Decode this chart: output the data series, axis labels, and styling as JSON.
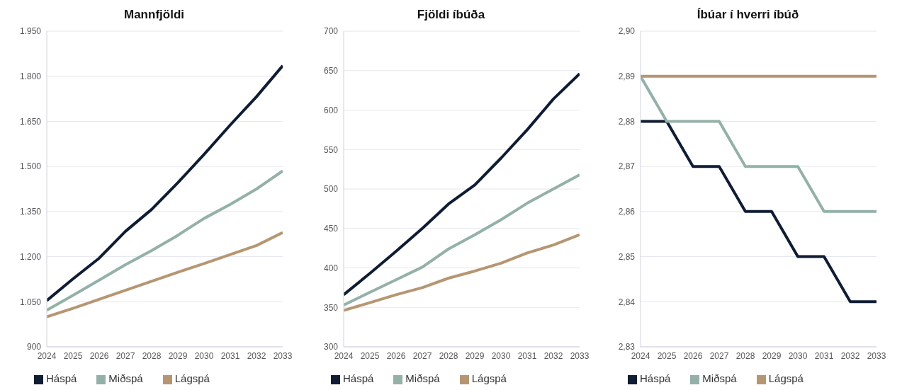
{
  "chart_data": [
    {
      "type": "line",
      "title": "Mannfjöldi",
      "x": [
        2024,
        2025,
        2026,
        2027,
        2028,
        2029,
        2030,
        2031,
        2032,
        2033
      ],
      "xlim": [
        2024,
        2033
      ],
      "xticks": [
        2024,
        2025,
        2026,
        2027,
        2028,
        2029,
        2030,
        2031,
        2032,
        2033
      ],
      "ylim": [
        900,
        1950
      ],
      "yticks": [
        900,
        {
          "value": 1050,
          "label": "1.050"
        },
        {
          "value": 1200,
          "label": "1.200"
        },
        {
          "value": 1350,
          "label": "1.350"
        },
        {
          "value": 1500,
          "label": "1.500"
        },
        {
          "value": 1650,
          "label": "1.650"
        },
        {
          "value": 1800,
          "label": "1.800"
        },
        {
          "value": 1950,
          "label": "1.950"
        }
      ],
      "grid": "y",
      "legend": "bottom",
      "marker": "none",
      "line_style": "solid",
      "series": [
        {
          "name": "Háspá",
          "color": "#0f1c33",
          "values": [
            1054,
            1126,
            1195,
            1284,
            1357,
            1446,
            1540,
            1638,
            1732,
            1835
          ]
        },
        {
          "name": "Miðspá",
          "color": "#93b1a8",
          "values": [
            1022,
            1071,
            1122,
            1173,
            1220,
            1271,
            1327,
            1374,
            1425,
            1485
          ]
        },
        {
          "name": "Lágspá",
          "color": "#b69672",
          "values": [
            1000,
            1028,
            1058,
            1088,
            1118,
            1148,
            1177,
            1207,
            1237,
            1280
          ]
        }
      ]
    },
    {
      "type": "line",
      "title": "Fjöldi íbúða",
      "x": [
        2024,
        2025,
        2026,
        2027,
        2028,
        2029,
        2030,
        2031,
        2032,
        2033
      ],
      "xlim": [
        2024,
        2033
      ],
      "xticks": [
        2024,
        2025,
        2026,
        2027,
        2028,
        2029,
        2030,
        2031,
        2032,
        2033
      ],
      "ylim": [
        300,
        700
      ],
      "yticks": [
        300,
        350,
        400,
        450,
        500,
        550,
        600,
        650,
        700
      ],
      "grid": "y",
      "legend": "bottom",
      "marker": "none",
      "line_style": "solid",
      "series": [
        {
          "name": "Háspá",
          "color": "#0f1c33",
          "values": [
            366,
            393,
            421,
            450,
            481,
            505,
            539,
            575,
            614,
            646
          ]
        },
        {
          "name": "Miðspá",
          "color": "#93b1a8",
          "values": [
            353,
            369,
            385,
            401,
            424,
            442,
            461,
            482,
            500,
            518
          ]
        },
        {
          "name": "Lágspá",
          "color": "#b69672",
          "values": [
            346,
            356,
            366,
            375,
            387,
            396,
            406,
            419,
            429,
            442
          ]
        }
      ]
    },
    {
      "type": "line",
      "title": "Íbúar í hverri íbúð",
      "x": [
        2024,
        2025,
        2026,
        2027,
        2028,
        2029,
        2030,
        2031,
        2032,
        2033
      ],
      "xlim": [
        2024,
        2033
      ],
      "xticks": [
        2024,
        2025,
        2026,
        2027,
        2028,
        2029,
        2030,
        2031,
        2032,
        2033
      ],
      "ylim": [
        2.83,
        2.9
      ],
      "yticks": [
        {
          "value": 2.83,
          "label": "2,83"
        },
        {
          "value": 2.84,
          "label": "2,84"
        },
        {
          "value": 2.85,
          "label": "2,85"
        },
        {
          "value": 2.86,
          "label": "2,86"
        },
        {
          "value": 2.87,
          "label": "2,87"
        },
        {
          "value": 2.88,
          "label": "2,88"
        },
        {
          "value": 2.89,
          "label": "2,89"
        },
        {
          "value": 2.9,
          "label": "2,90"
        }
      ],
      "grid": "y",
      "legend": "bottom",
      "marker": "none",
      "line_style": "solid",
      "series": [
        {
          "name": "Háspá",
          "color": "#0f1c33",
          "values": [
            2.88,
            2.88,
            2.87,
            2.87,
            2.86,
            2.86,
            2.85,
            2.85,
            2.84,
            2.84
          ]
        },
        {
          "name": "Miðspá",
          "color": "#93b1a8",
          "values": [
            2.89,
            2.88,
            2.88,
            2.88,
            2.87,
            2.87,
            2.87,
            2.86,
            2.86,
            2.86
          ]
        },
        {
          "name": "Lágspá",
          "color": "#b69672",
          "values": [
            2.89,
            2.89,
            2.89,
            2.89,
            2.89,
            2.89,
            2.89,
            2.89,
            2.89,
            2.89
          ]
        }
      ]
    }
  ]
}
